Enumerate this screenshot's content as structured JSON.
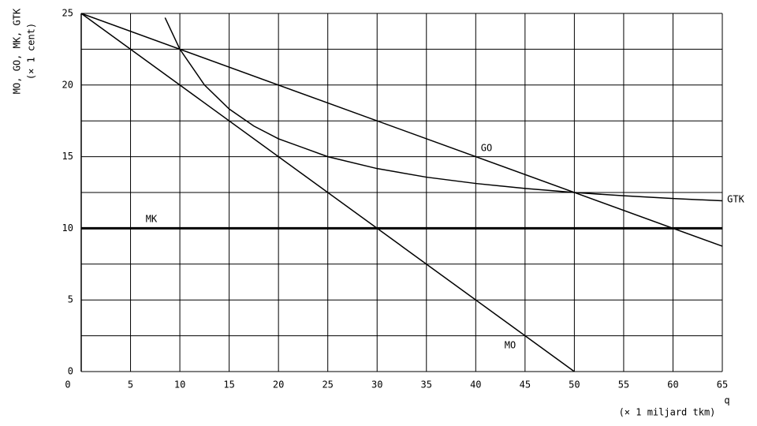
{
  "chart_data": {
    "type": "line",
    "ylabel": [
      "MO, GO, MK, GTK",
      "(× 1 cent)"
    ],
    "xlabel": [
      "q",
      "(× 1 miljard tkm)"
    ],
    "xlim": [
      0,
      65
    ],
    "ylim": [
      0,
      25
    ],
    "xticks": [
      0,
      5,
      10,
      15,
      20,
      25,
      30,
      35,
      40,
      45,
      50,
      55,
      60,
      65
    ],
    "yticks": [
      0,
      5,
      10,
      15,
      20,
      25
    ],
    "yminor": [
      2.5,
      7.5,
      12.5,
      17.5,
      22.5
    ],
    "grid": true,
    "series": [
      {
        "name": "MO",
        "color": "#000000",
        "linewidth": 1.5,
        "x": [
          0,
          50
        ],
        "values": [
          25,
          0
        ]
      },
      {
        "name": "GO",
        "color": "#000000",
        "linewidth": 1.5,
        "x": [
          0,
          65
        ],
        "values": [
          25,
          8.75
        ]
      },
      {
        "name": "MK",
        "color": "#000000",
        "linewidth": 3,
        "x": [
          0,
          65
        ],
        "values": [
          10,
          10
        ]
      },
      {
        "name": "GTK",
        "color": "#000000",
        "linewidth": 1.5,
        "x": [
          8.5,
          10,
          12.5,
          15,
          17.5,
          20,
          25,
          30,
          35,
          40,
          45,
          50,
          55,
          60,
          65
        ],
        "values": [
          24.7,
          22.5,
          20,
          18.33,
          17.14,
          16.25,
          15,
          14.17,
          13.57,
          13.13,
          12.78,
          12.5,
          12.27,
          12.08,
          11.92
        ]
      }
    ]
  }
}
